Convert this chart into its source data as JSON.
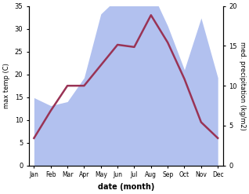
{
  "months": [
    "Jan",
    "Feb",
    "Mar",
    "Apr",
    "May",
    "Jun",
    "Jul",
    "Aug",
    "Sep",
    "Oct",
    "Nov",
    "Dec"
  ],
  "month_positions": [
    0,
    1,
    2,
    3,
    4,
    5,
    6,
    7,
    8,
    9,
    10,
    11
  ],
  "temp_max": [
    6,
    12,
    17.5,
    17.5,
    22,
    26.5,
    26,
    33,
    27,
    19,
    9.5,
    6
  ],
  "precip": [
    8.5,
    7.5,
    8,
    11,
    19,
    21,
    21,
    22,
    17.5,
    12,
    18.5,
    11
  ],
  "temp_ylim": [
    0,
    35
  ],
  "precip_ylim": [
    0,
    20
  ],
  "temp_yticks": [
    0,
    5,
    10,
    15,
    20,
    25,
    30,
    35
  ],
  "precip_yticks": [
    0,
    5,
    10,
    15,
    20
  ],
  "xlabel": "date (month)",
  "ylabel_left": "max temp (C)",
  "ylabel_right": "med. precipitation (kg/m2)",
  "line_color": "#993355",
  "fill_color": "#aabbee",
  "fill_alpha": 0.9,
  "bg_color": "#ffffff",
  "line_width": 1.8
}
